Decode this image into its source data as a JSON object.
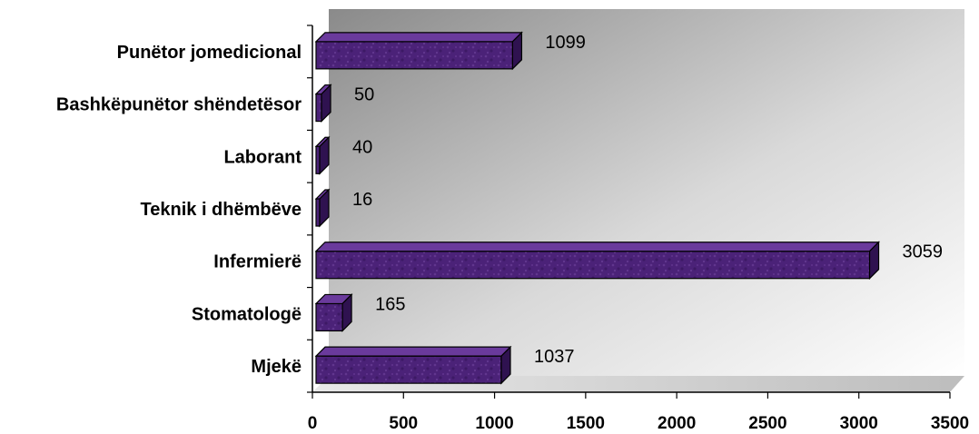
{
  "chart_data": {
    "type": "bar",
    "orientation": "horizontal",
    "categories": [
      "Punëtor jomedicional",
      "Bashkëpunëtor shëndetësor",
      "Laborant",
      "Teknik i dhëmbëve",
      "Infermierë",
      "Stomatologë",
      "Mjekë"
    ],
    "values": [
      1099,
      50,
      40,
      16,
      3059,
      165,
      1037
    ],
    "xlim": [
      0,
      3500
    ],
    "xticks": [
      "0",
      "500",
      "1000",
      "1500",
      "2000",
      "2500",
      "3000",
      "3500"
    ],
    "title": "",
    "xlabel": "",
    "ylabel": "",
    "grid": false,
    "legend": "none",
    "data_labels": true,
    "style": "3d",
    "colors": {
      "bar_fill": "#4b2278",
      "bar_top": "#6a3a9c",
      "bar_side": "#2f1250",
      "bar_outline": "#000000",
      "wall_dark": "#8a8a8a",
      "wall_light": "#ffffff",
      "floor": "#c8c8c8"
    }
  }
}
